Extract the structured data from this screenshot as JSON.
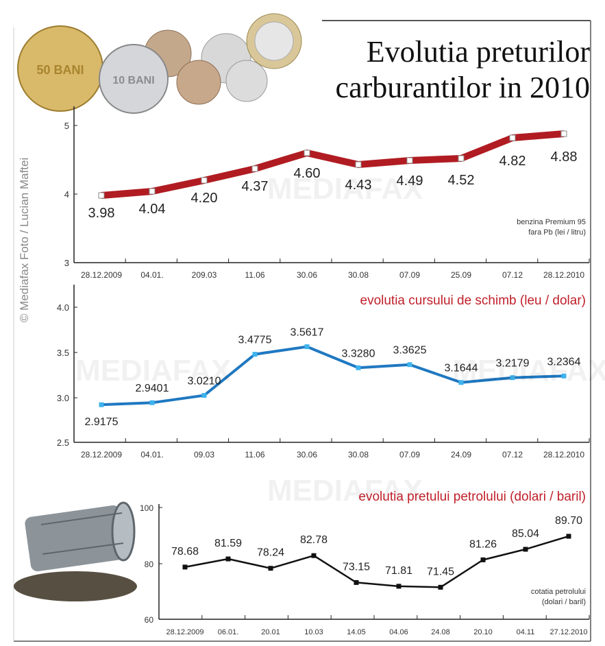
{
  "title_line1": "Evolutia  preturilor",
  "title_line2": "carburantilor in 2010",
  "credit": "© Mediafax Foto / Lucian Maftei",
  "watermark": "MEDIAFAX FOTO",
  "coin_labels": [
    "50 BANI",
    "10 BANI"
  ],
  "chart_data": [
    {
      "type": "line",
      "note_line1": "benzina Premium 95",
      "note_line2": "fara Pb (lei / litru)",
      "categories": [
        "28.12.2009",
        "04.01.",
        "209.03",
        "11.06",
        "30.06",
        "30.08",
        "07.09",
        "25.09",
        "07.12",
        "28.12.2010"
      ],
      "values": [
        3.98,
        4.04,
        4.2,
        4.37,
        4.6,
        4.43,
        4.49,
        4.52,
        4.82,
        4.88
      ],
      "value_labels": [
        "3.98",
        "4.04",
        "4.20",
        "4.37",
        "4.60",
        "4.43",
        "4.49",
        "4.52",
        "4.82",
        "4.88"
      ],
      "yticks": [
        "3",
        "4",
        "5"
      ],
      "ylim": [
        3,
        5
      ],
      "color": "#b01c22"
    },
    {
      "type": "line",
      "title": "evolutia cursului de schimb (leu / dolar)",
      "categories": [
        "28.12.2009",
        "04.01.",
        "09.03",
        "11.06",
        "30.06",
        "30.08",
        "07.09",
        "24.09",
        "07.12",
        "28.12.2010"
      ],
      "values": [
        2.9175,
        2.9401,
        3.021,
        3.4775,
        3.5617,
        3.328,
        3.3625,
        3.1644,
        3.2179,
        3.2364
      ],
      "value_labels": [
        "2.9175",
        "2.9401",
        "3.0210",
        "3.4775",
        "3.5617",
        "3.3280",
        "3.3625",
        "3.1644",
        "3.2179",
        "3.2364"
      ],
      "yticks": [
        "2.5",
        "3.0",
        "3.5",
        "4.0"
      ],
      "ylim": [
        2.5,
        4.0
      ],
      "color": "#1f78c1"
    },
    {
      "type": "line",
      "title": "evolutia pretului petrolului (dolari / baril)",
      "note_line1": "cotatia petrolului",
      "note_line2": "(dolari / baril)",
      "categories": [
        "28.12.2009",
        "06.01.",
        "20.01",
        "10.03",
        "14.05",
        "04.06",
        "24.08",
        "20.10",
        "04.11",
        "27.12.2010"
      ],
      "values": [
        78.68,
        81.59,
        78.24,
        82.78,
        73.15,
        71.81,
        71.45,
        81.26,
        85.04,
        89.7
      ],
      "value_labels": [
        "78.68",
        "81.59",
        "78.24",
        "82.78",
        "73.15",
        "71.81",
        "71.45",
        "81.26",
        "85.04",
        "89.70"
      ],
      "yticks": [
        "60",
        "80",
        "100"
      ],
      "ylim": [
        60,
        100
      ],
      "color": "#111111"
    }
  ]
}
